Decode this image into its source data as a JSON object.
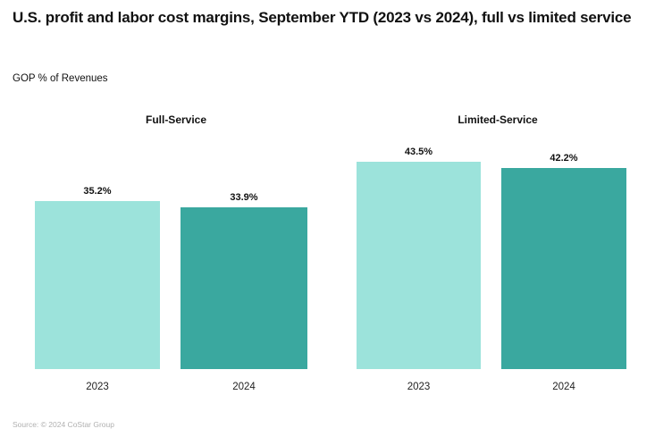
{
  "header": {
    "title": "U.S. profit and labor cost margins, September YTD (2023 vs 2024), full vs limited service",
    "subtitle": "GOP % of Revenues"
  },
  "chart_data": {
    "type": "bar",
    "title": "U.S. profit and labor cost margins, September YTD (2023 vs 2024), full vs limited service",
    "ylabel": "GOP % of Revenues",
    "grid": false,
    "legend_position": "none",
    "y_axis_visible": false,
    "ylim": [
      0,
      50
    ],
    "groups": [
      {
        "label": "Full-Service",
        "categories": [
          "2023",
          "2024"
        ],
        "values": [
          35.2,
          33.9
        ],
        "value_labels": [
          "35.2%",
          "33.9%"
        ]
      },
      {
        "label": "Limited-Service",
        "categories": [
          "2023",
          "2024"
        ],
        "values": [
          43.5,
          42.2
        ],
        "value_labels": [
          "43.5%",
          "42.2%"
        ]
      }
    ],
    "series_colors": [
      "#9CE3DB",
      "#3AA89F"
    ]
  },
  "footer": {
    "source": "Source: © 2024 CoStar Group"
  }
}
